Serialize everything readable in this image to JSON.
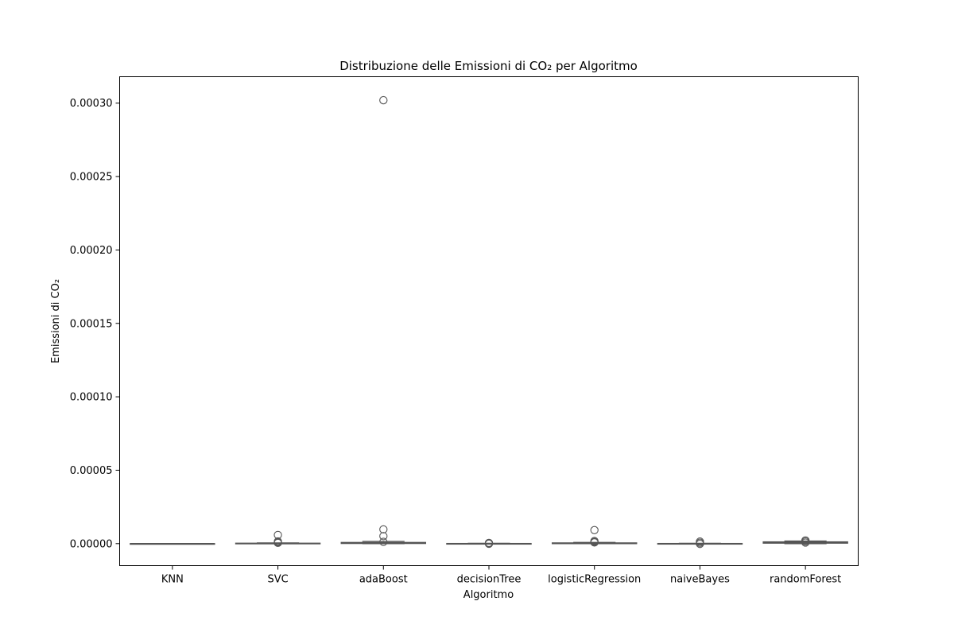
{
  "chart_data": {
    "type": "box",
    "title": "Distribuzione delle Emissioni di CO₂ per Algoritmo",
    "xlabel": "Algoritmo",
    "ylabel": "Emissioni di CO₂",
    "categories": [
      "KNN",
      "SVC",
      "adaBoost",
      "decisionTree",
      "logisticRegression",
      "naiveBayes",
      "randomForest"
    ],
    "ylim": [
      -1.5e-05,
      0.000318
    ],
    "yticks": [
      0.0,
      5e-05,
      0.0001,
      0.00015,
      0.0002,
      0.00025,
      0.0003
    ],
    "ytick_labels": [
      "0.00000",
      "0.00005",
      "0.00010",
      "0.00015",
      "0.00020",
      "0.00025",
      "0.00030"
    ],
    "grid": false,
    "color": "#555555",
    "boxes": [
      {
        "name": "KNN",
        "whisker_low": 0.0,
        "q1": 0.0,
        "median": 0.0,
        "q3": 0.0,
        "whisker_high": 0.0,
        "outliers": []
      },
      {
        "name": "SVC",
        "whisker_low": 0.0,
        "q1": 0.0,
        "median": 0.0,
        "q3": 3e-07,
        "whisker_high": 5e-07,
        "outliers": [
          5.9e-06,
          1.5e-06,
          9e-07,
          5e-07
        ]
      },
      {
        "name": "adaBoost",
        "whisker_low": 0.0,
        "q1": 1e-07,
        "median": 3e-07,
        "q3": 8e-07,
        "whisker_high": 1.5e-06,
        "outliers": [
          0.000302,
          9.7e-06,
          5.1e-06,
          1.2e-06
        ]
      },
      {
        "name": "decisionTree",
        "whisker_low": 0.0,
        "q1": 0.0,
        "median": 0.0,
        "q3": 1e-07,
        "whisker_high": 2e-07,
        "outliers": [
          5e-07,
          2e-07,
          -1e-07
        ]
      },
      {
        "name": "logisticRegression",
        "whisker_low": 0.0,
        "q1": 0.0,
        "median": 1e-07,
        "q3": 5e-07,
        "whisker_high": 8e-07,
        "outliers": [
          9.2e-06,
          1.8e-06,
          1.2e-06,
          8e-07
        ]
      },
      {
        "name": "naiveBayes",
        "whisker_low": 0.0,
        "q1": 0.0,
        "median": 0.0,
        "q3": 1e-07,
        "whisker_high": 2e-07,
        "outliers": [
          1.4e-06,
          6e-07,
          -2e-07
        ]
      },
      {
        "name": "randomForest",
        "whisker_low": 0.0,
        "q1": 3e-07,
        "median": 6e-07,
        "q3": 1.2e-06,
        "whisker_high": 1.8e-06,
        "outliers": [
          2.2e-06,
          1.5e-06,
          7e-07
        ]
      }
    ]
  }
}
